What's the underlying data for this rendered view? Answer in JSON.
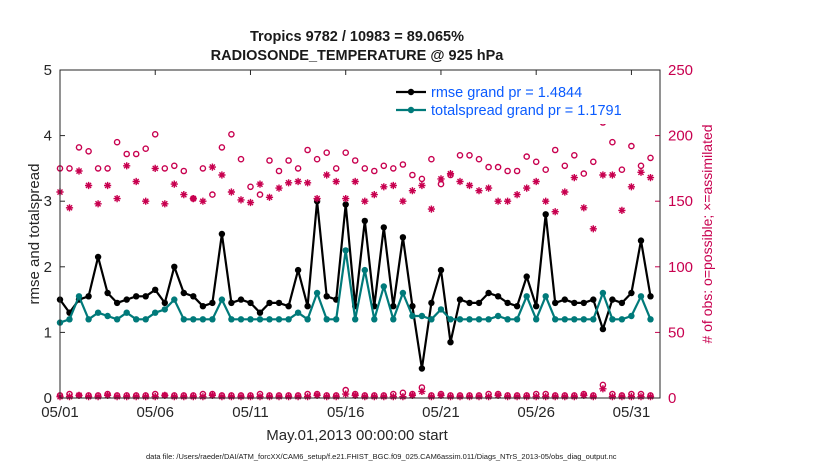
{
  "chart_data": {
    "type": "line",
    "title": "Tropics 9782 / 10983 = 89.065%",
    "subtitle": "RADIOSONDE_TEMPERATURE @ 925 hPa",
    "xlabel": "May.01,2013 00:00:00 start",
    "ylabel": "rmse and totalspread",
    "y2label": "# of obs: o=possible; ×=assimilated",
    "footnote": "data file: /Users/raeder/DAI/ATM_forcXX/CAM6_setup/f.e21.FHIST_BGC.f09_025.CAM6assim.011/Diags_NTrS_2013-05/obs_diag_output.nc",
    "xlim": [
      1,
      32.5
    ],
    "ylim": [
      0,
      5
    ],
    "y2lim": [
      0,
      250
    ],
    "x_ticks": [
      1,
      6,
      11,
      16,
      21,
      26,
      31
    ],
    "x_tick_labels": [
      "05/01",
      "05/06",
      "05/11",
      "05/16",
      "05/21",
      "05/26",
      "05/31"
    ],
    "y_ticks": [
      "0",
      "1",
      "2",
      "3",
      "4",
      "5"
    ],
    "y2_ticks": [
      "0",
      "50",
      "100",
      "150",
      "200",
      "250"
    ],
    "legend_position": "top-right",
    "x": [
      1.0,
      1.5,
      2.0,
      2.5,
      3.0,
      3.5,
      4.0,
      4.5,
      5.0,
      5.5,
      6.0,
      6.5,
      7.0,
      7.5,
      8.0,
      8.5,
      9.0,
      9.5,
      10.0,
      10.5,
      11.0,
      11.5,
      12.0,
      12.5,
      13.0,
      13.5,
      14.0,
      14.5,
      15.0,
      15.5,
      16.0,
      16.5,
      17.0,
      17.5,
      18.0,
      18.5,
      19.0,
      19.5,
      20.0,
      20.5,
      21.0,
      21.5,
      22.0,
      22.5,
      23.0,
      23.5,
      24.0,
      24.5,
      25.0,
      25.5,
      26.0,
      26.5,
      27.0,
      27.5,
      28.0,
      28.5,
      29.0,
      29.5,
      30.0,
      30.5,
      31.0,
      31.5,
      32.0
    ],
    "series": [
      {
        "name": "rmse grand pr = 1.4844",
        "axis": "left",
        "color": "#000000",
        "values": [
          1.5,
          1.3,
          1.5,
          1.55,
          2.15,
          1.6,
          1.45,
          1.5,
          1.55,
          1.55,
          1.65,
          1.45,
          2.0,
          1.6,
          1.55,
          1.4,
          1.45,
          2.5,
          1.45,
          1.5,
          1.45,
          1.3,
          1.45,
          1.45,
          1.4,
          1.95,
          1.4,
          3.0,
          1.55,
          1.5,
          2.95,
          1.4,
          2.7,
          1.4,
          2.6,
          1.4,
          2.45,
          1.4,
          0.45,
          1.45,
          1.95,
          0.85,
          1.5,
          1.45,
          1.45,
          1.6,
          1.55,
          1.45,
          1.4,
          1.85,
          1.4,
          2.8,
          1.45,
          1.5,
          1.45,
          1.45,
          1.5,
          1.05,
          1.5,
          1.45,
          1.6,
          2.4,
          1.55
        ]
      },
      {
        "name": "totalspread grand pr = 1.1791",
        "axis": "left",
        "color": "#007a7a",
        "values": [
          1.15,
          1.2,
          1.55,
          1.2,
          1.3,
          1.25,
          1.2,
          1.3,
          1.2,
          1.2,
          1.3,
          1.35,
          1.5,
          1.2,
          1.2,
          1.2,
          1.2,
          1.5,
          1.2,
          1.2,
          1.2,
          1.2,
          1.2,
          1.2,
          1.2,
          1.3,
          1.2,
          1.6,
          1.2,
          1.2,
          2.25,
          1.2,
          1.95,
          1.2,
          1.7,
          1.2,
          1.6,
          1.25,
          1.25,
          1.2,
          1.35,
          1.2,
          1.2,
          1.2,
          1.2,
          1.2,
          1.25,
          1.2,
          1.2,
          1.55,
          1.2,
          1.55,
          1.2,
          1.2,
          1.2,
          1.2,
          1.2,
          1.6,
          1.2,
          1.2,
          1.25,
          1.55,
          1.2
        ]
      },
      {
        "name": "possible",
        "axis": "right",
        "color": "#c8004f",
        "marker": "circle",
        "values": [
          175,
          175,
          191,
          188,
          175,
          175,
          195,
          186,
          186,
          190,
          201,
          175,
          177,
          173,
          152,
          175,
          155,
          191,
          201,
          182,
          161,
          155,
          181,
          173,
          181,
          175,
          189,
          182,
          187,
          175,
          187,
          181,
          175,
          173,
          177,
          175,
          178,
          170,
          167,
          182,
          163,
          170,
          185,
          185,
          182,
          176,
          176,
          173,
          173,
          184,
          180,
          174,
          189,
          177,
          185,
          171,
          180,
          210,
          195,
          174,
          192,
          177,
          183
        ]
      },
      {
        "name": "assimilated",
        "axis": "right",
        "color": "#c8004f",
        "marker": "star",
        "values": [
          157,
          145,
          173,
          162,
          148,
          162,
          152,
          177,
          165,
          150,
          175,
          148,
          163,
          155,
          152,
          150,
          176,
          170,
          157,
          151,
          149,
          163,
          153,
          160,
          164,
          165,
          164,
          152,
          170,
          165,
          152,
          165,
          150,
          155,
          161,
          162,
          150,
          158,
          162,
          144,
          167,
          171,
          165,
          162,
          158,
          160,
          150,
          150,
          155,
          160,
          165,
          150,
          142,
          157,
          168,
          145,
          129,
          170,
          170,
          143,
          161,
          172,
          168
        ]
      },
      {
        "name": "possible_bottom",
        "axis": "right",
        "color": "#c8004f",
        "marker": "circle",
        "values": [
          2,
          3,
          2,
          2,
          2,
          3,
          2,
          2,
          2,
          2,
          3,
          2,
          2,
          2,
          2,
          3,
          3,
          2,
          2,
          2,
          2,
          3,
          2,
          2,
          2,
          2,
          3,
          3,
          2,
          2,
          6,
          3,
          2,
          2,
          2,
          3,
          4,
          3,
          8,
          2,
          3,
          2,
          2,
          2,
          2,
          3,
          3,
          2,
          2,
          2,
          3,
          3,
          2,
          2,
          2,
          3,
          2,
          10,
          3,
          2,
          3,
          3,
          2
        ]
      },
      {
        "name": "assimilated_bottom",
        "axis": "right",
        "color": "#c8004f",
        "marker": "star",
        "values": [
          1,
          1,
          2,
          1,
          1,
          2,
          1,
          1,
          1,
          1,
          1,
          2,
          1,
          1,
          1,
          1,
          2,
          1,
          1,
          1,
          1,
          1,
          1,
          1,
          1,
          1,
          1,
          2,
          1,
          1,
          3,
          2,
          1,
          1,
          1,
          1,
          1,
          2,
          5,
          1,
          2,
          1,
          1,
          1,
          1,
          1,
          2,
          1,
          1,
          1,
          1,
          1,
          1,
          1,
          1,
          2,
          1,
          7,
          1,
          1,
          1,
          1,
          1
        ]
      }
    ]
  }
}
